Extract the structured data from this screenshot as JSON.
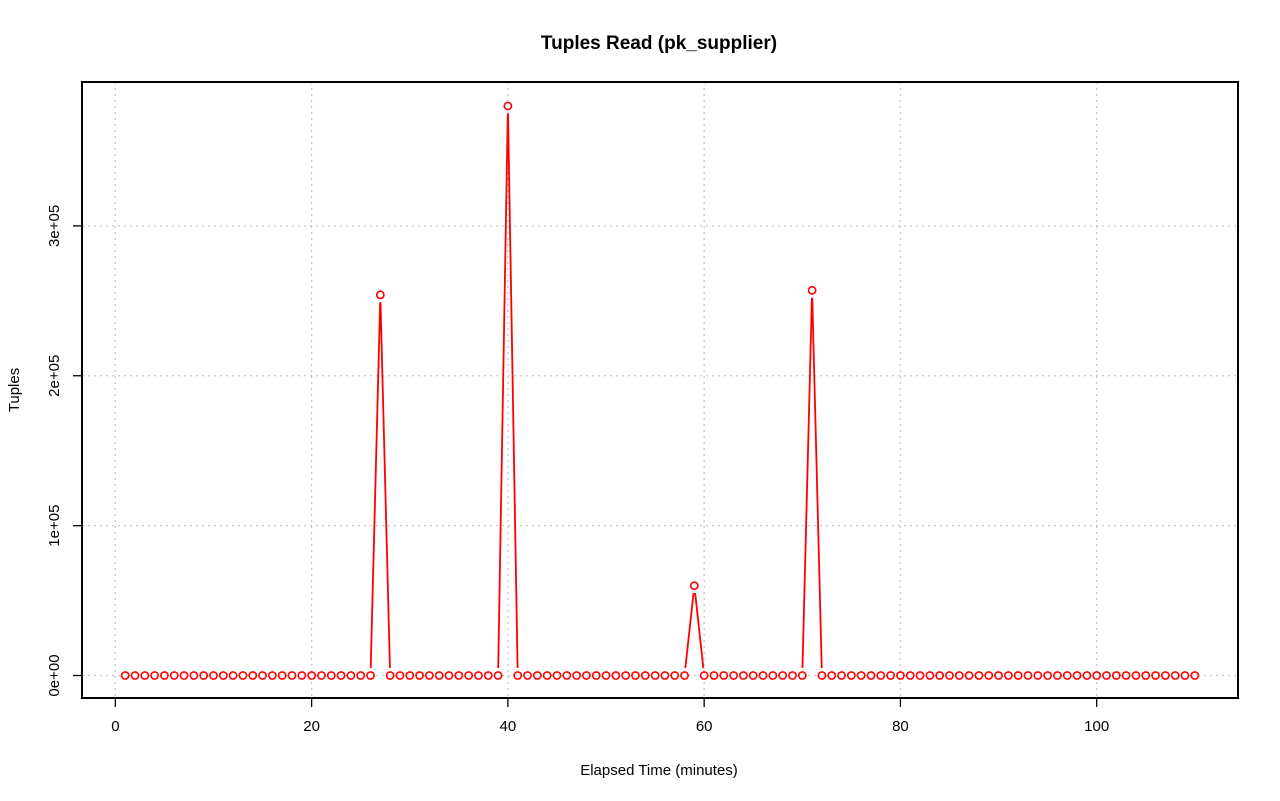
{
  "chart_data": {
    "type": "line",
    "title": "Tuples Read (pk_supplier)",
    "xlabel": "Elapsed Time (minutes)",
    "ylabel": "Tuples",
    "xlim": [
      -3.4,
      114.4
    ],
    "ylim": [
      -15000,
      396000
    ],
    "x_ticks": [
      {
        "value": 0,
        "label": "0"
      },
      {
        "value": 20,
        "label": "20"
      },
      {
        "value": 40,
        "label": "40"
      },
      {
        "value": 60,
        "label": "60"
      },
      {
        "value": 80,
        "label": "80"
      },
      {
        "value": 100,
        "label": "100"
      }
    ],
    "y_ticks": [
      {
        "value": 0,
        "label": "0e+00"
      },
      {
        "value": 100000,
        "label": "1e+05"
      },
      {
        "value": 200000,
        "label": "2e+05"
      },
      {
        "value": 300000,
        "label": "3e+05"
      }
    ],
    "grid": true,
    "series_color": "#ff0000",
    "series": [
      {
        "x": [
          1,
          2,
          3,
          4,
          5,
          6,
          7,
          8,
          9,
          10,
          11,
          12,
          13,
          14,
          15,
          16,
          17,
          18,
          19,
          20,
          21,
          22,
          23,
          24,
          25,
          26,
          27,
          28,
          29,
          30,
          31,
          32,
          33,
          34,
          35,
          36,
          37,
          38,
          39,
          40,
          41,
          42,
          43,
          44,
          45,
          46,
          47,
          48,
          49,
          50,
          51,
          52,
          53,
          54,
          55,
          56,
          57,
          58,
          59,
          60,
          61,
          62,
          63,
          64,
          65,
          66,
          67,
          68,
          69,
          70,
          71,
          72,
          73,
          74,
          75,
          76,
          77,
          78,
          79,
          80,
          81,
          82,
          83,
          84,
          85,
          86,
          87,
          88,
          89,
          90,
          91,
          92,
          93,
          94,
          95,
          96,
          97,
          98,
          99,
          100,
          101,
          102,
          103,
          104,
          105,
          106,
          107,
          108,
          109,
          110
        ],
        "values": [
          0,
          0,
          0,
          0,
          0,
          0,
          0,
          0,
          0,
          0,
          0,
          0,
          0,
          0,
          0,
          0,
          0,
          0,
          0,
          0,
          0,
          0,
          0,
          0,
          0,
          0,
          254000,
          0,
          0,
          0,
          0,
          0,
          0,
          0,
          0,
          0,
          0,
          0,
          0,
          380000,
          0,
          0,
          0,
          0,
          0,
          0,
          0,
          0,
          0,
          0,
          0,
          0,
          0,
          0,
          0,
          0,
          0,
          0,
          60000,
          0,
          0,
          0,
          0,
          0,
          0,
          0,
          0,
          0,
          0,
          0,
          257000,
          0,
          0,
          0,
          0,
          0,
          0,
          0,
          0,
          0,
          0,
          0,
          0,
          0,
          0,
          0,
          0,
          0,
          0,
          0,
          0,
          0,
          0,
          0,
          0,
          0,
          0,
          0,
          0,
          0,
          0,
          0,
          0,
          0,
          0,
          0,
          0,
          0,
          0,
          0
        ]
      }
    ]
  }
}
